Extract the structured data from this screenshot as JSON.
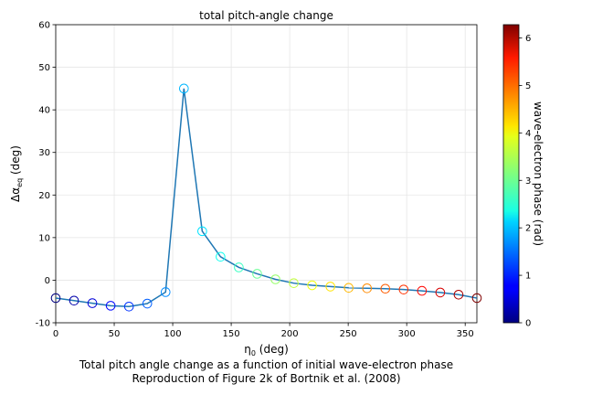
{
  "chart_data": {
    "type": "line",
    "title": "total pitch-angle change",
    "xlabel_main": "η",
    "xlabel_sub": "0",
    "xlabel_unit": " (deg)",
    "ylabel_main": "Δα",
    "ylabel_sub": "eq",
    "ylabel_unit": " (deg)",
    "xlim": [
      0,
      360
    ],
    "ylim": [
      -10,
      60
    ],
    "xticks": [
      0,
      50,
      100,
      150,
      200,
      250,
      300,
      350
    ],
    "yticks": [
      -10,
      0,
      10,
      20,
      30,
      40,
      50,
      60
    ],
    "grid": true,
    "line_color": "#1f77b4",
    "x": [
      0,
      15.65,
      31.3,
      46.96,
      62.61,
      78.26,
      93.91,
      109.57,
      125.22,
      140.87,
      156.52,
      172.17,
      187.83,
      203.48,
      219.13,
      234.78,
      250.43,
      266.09,
      281.74,
      297.39,
      313.04,
      328.7,
      344.35,
      360
    ],
    "y": [
      -4.2,
      -4.8,
      -5.4,
      -6.0,
      -6.2,
      -5.5,
      -2.8,
      45.0,
      11.5,
      5.5,
      3.0,
      1.5,
      0.2,
      -0.7,
      -1.2,
      -1.5,
      -1.8,
      -1.9,
      -2.0,
      -2.2,
      -2.5,
      -2.9,
      -3.4,
      -4.2
    ],
    "marker_values": [
      0,
      0.27,
      0.55,
      0.82,
      1.09,
      1.37,
      1.64,
      1.91,
      2.19,
      2.46,
      2.73,
      3.0,
      3.28,
      3.55,
      3.83,
      4.1,
      4.37,
      4.64,
      4.92,
      5.19,
      5.46,
      5.74,
      6.01,
      6.28
    ],
    "colorbar": {
      "label": "wave-electron phase (rad)",
      "range": [
        0,
        6.28
      ],
      "ticks": [
        0,
        1,
        2,
        3,
        4,
        5,
        6
      ],
      "colormap": "jet"
    }
  },
  "captions": {
    "line1": "Total pitch angle change as a function of initial wave-electron phase",
    "line2": "Reproduction of Figure 2k of Bortnik et al. (2008)"
  }
}
